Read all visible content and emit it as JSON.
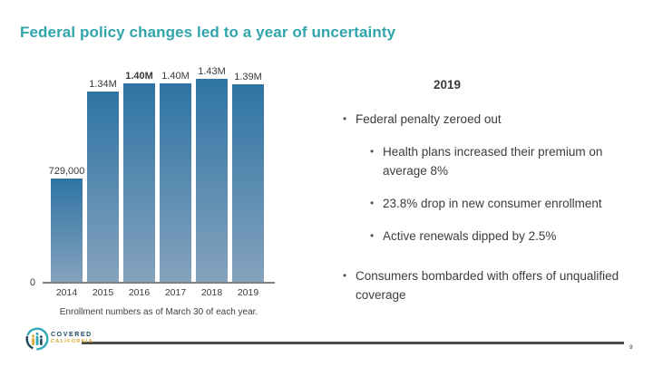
{
  "slide": {
    "title": "Federal policy changes led to a year of uncertainty",
    "page_number": "9"
  },
  "chart_data": {
    "type": "bar",
    "categories": [
      "2014",
      "2015",
      "2016",
      "2017",
      "2018",
      "2019"
    ],
    "values": [
      729000,
      1340000,
      1400000,
      1400000,
      1430000,
      1390000
    ],
    "value_labels": [
      "729,000",
      "1.34M",
      "1.40M",
      "1.40M",
      "1.43M",
      "1.39M"
    ],
    "value_label_bold": [
      false,
      false,
      true,
      false,
      false,
      false
    ],
    "title": "",
    "xlabel": "",
    "ylabel": "",
    "y_zero_label": "0",
    "ylim": [
      0,
      1430000
    ],
    "grid": false,
    "legend": "none",
    "caption": "Enrollment numbers as of March 30 of each year.",
    "bar_color_top": "#2e74a4",
    "bar_color_bottom": "#85a2bd"
  },
  "content": {
    "heading": "2019",
    "bullets": [
      {
        "level": 1,
        "text": "Federal penalty zeroed out"
      },
      {
        "level": 2,
        "text": "Health plans increased their premium on average 8%"
      },
      {
        "level": 2,
        "text": "23.8% drop in new consumer enrollment"
      },
      {
        "level": 2,
        "text": "Active renewals dipped by 2.5%"
      },
      {
        "level": 1,
        "text": "Consumers bombarded with offers of unqualified coverage"
      }
    ]
  },
  "footer": {
    "logo_text_top": "COVERED",
    "logo_text_bottom": "CALIFORNIA"
  },
  "colors": {
    "title_teal": "#31a5ac",
    "body_text": "#3c3c3c",
    "axis_gray": "#7f7f7f",
    "footer_rule": "#4a4a4a",
    "logo_navy": "#1e4a5e",
    "logo_gold": "#d4a72c",
    "logo_teal": "#2fa9b5"
  }
}
